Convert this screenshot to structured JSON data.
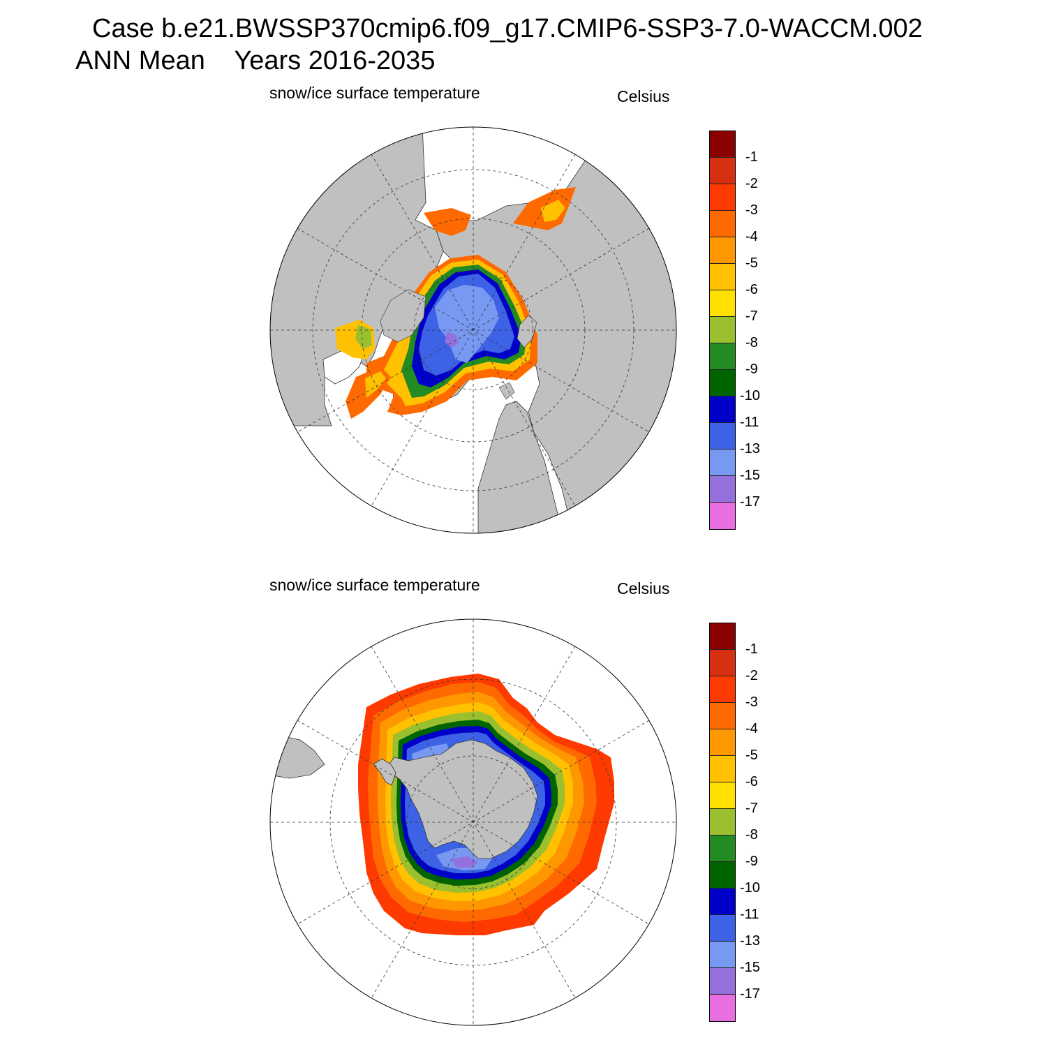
{
  "title": {
    "line1": "Case b.e21.BWSSP370cmip6.f09_g17.CMIP6-SSP3-7.0-WACCM.002",
    "line2": "ANN Mean    Years 2016-2035"
  },
  "colors": {
    "land": "#c0c0c0",
    "ocean": "#ffffff",
    "scale": [
      "#8b0000",
      "#d62f11",
      "#ff3a00",
      "#ff6a00",
      "#ff9800",
      "#ffc100",
      "#ffe000",
      "#9ac030",
      "#228b22",
      "#006400",
      "#0000c8",
      "#3d62e6",
      "#7799f2",
      "#9470dc",
      "#e86fe0"
    ]
  },
  "colorbar": {
    "tick_labels": [
      "-1",
      "-2",
      "-3",
      "-4",
      "-5",
      "-6",
      "-7",
      "-8",
      "-9",
      "-10",
      "-11",
      "-13",
      "-15",
      "-17"
    ]
  },
  "panels": [
    {
      "id": "north",
      "hemisphere": "Northern Hemisphere polar stereographic",
      "left_label": "snow/ice surface temperature",
      "right_label": "Celsius",
      "field": "snow/ice surface temperature"
    },
    {
      "id": "south",
      "hemisphere": "Southern Hemisphere polar stereographic",
      "left_label": "snow/ice surface temperature",
      "right_label": "Celsius",
      "field": "snow/ice surface temperature"
    }
  ]
}
